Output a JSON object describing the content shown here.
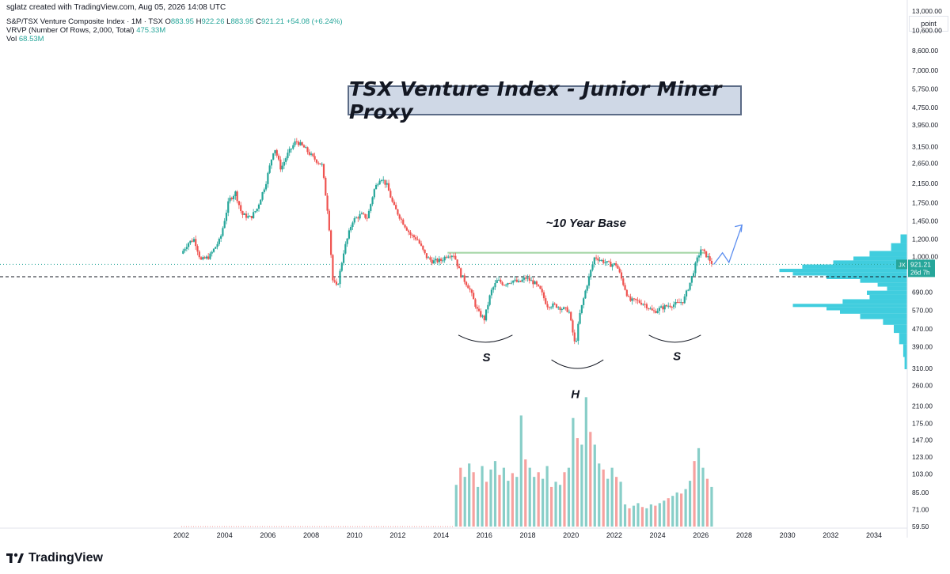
{
  "header": {
    "credit": "sglatz created with TradingView.com, Aug 05, 2026 14:08 UTC"
  },
  "legend": {
    "symbol": "S&P/TSX Venture Composite Index · 1M · TSX",
    "open_label": "O",
    "open": "883.95",
    "high_label": "H",
    "high": "922.26",
    "low_label": "L",
    "low": "883.95",
    "close_label": "C",
    "close": "921.21",
    "change": "+54.08 (+6.24%)",
    "vrvp_label": "VRVP (Number Of Rows, 2,000, Total)",
    "vrvp_value": "475.33M",
    "vol_label": "Vol",
    "vol_value": "68.53M"
  },
  "title": "TSX Venture Index - Junior Miner Proxy",
  "annotations": {
    "base": "~10 Year Base",
    "left_shoulder": "S",
    "head": "H",
    "right_shoulder": "S"
  },
  "price_scale": {
    "mode_button": "point",
    "ticks": [
      "13,000.00",
      "10,600.00",
      "8,600.00",
      "7,000.00",
      "5,750.00",
      "4,750.00",
      "3,950.00",
      "3,150.00",
      "2,650.00",
      "2,150.00",
      "1,750.00",
      "1,450.00",
      "1,200.00",
      "1,000.00",
      "830.00",
      "690.00",
      "570.00",
      "470.00",
      "390.00",
      "310.00",
      "260.00",
      "210.00",
      "175.00",
      "147.00",
      "123.00",
      "103.00",
      "85.00",
      "71.00",
      "59.50"
    ],
    "last_price_symbol": "JX",
    "last_price": "921.21",
    "countdown": "26d 7h"
  },
  "time_scale": {
    "ticks": [
      "2002",
      "2004",
      "2006",
      "2008",
      "2010",
      "2012",
      "2014",
      "2016",
      "2018",
      "2020",
      "2022",
      "2024",
      "2026",
      "2028",
      "2030",
      "2032",
      "2034"
    ]
  },
  "brand": {
    "name": "TradingView"
  },
  "colors": {
    "up": "#26a69a",
    "down": "#ef5350",
    "vrvp": "#1fc4d8",
    "base_line": "#a5d6a7",
    "projection": "#5b8def",
    "title_bg": "#cfd8e6"
  },
  "chart_data": {
    "type": "candlestick",
    "timeframe": "1M",
    "scale": "log",
    "ylim": [
      55,
      16000
    ],
    "xlim": [
      2001.0,
      2035.0
    ],
    "price_points": [
      [
        2002.0,
        1030
      ],
      [
        2002.3,
        1150
      ],
      [
        2002.6,
        1200
      ],
      [
        2002.9,
        960
      ],
      [
        2003.3,
        1000
      ],
      [
        2003.8,
        1200
      ],
      [
        2004.2,
        1800
      ],
      [
        2004.5,
        1950
      ],
      [
        2004.8,
        1550
      ],
      [
        2005.2,
        1500
      ],
      [
        2005.5,
        1650
      ],
      [
        2005.9,
        2150
      ],
      [
        2006.3,
        3150
      ],
      [
        2006.6,
        2500
      ],
      [
        2006.9,
        2900
      ],
      [
        2007.3,
        3350
      ],
      [
        2007.7,
        3100
      ],
      [
        2008.1,
        2800
      ],
      [
        2008.5,
        2600
      ],
      [
        2008.8,
        1500
      ],
      [
        2009.0,
        780
      ],
      [
        2009.2,
        720
      ],
      [
        2009.5,
        1050
      ],
      [
        2009.9,
        1450
      ],
      [
        2010.3,
        1550
      ],
      [
        2010.6,
        1500
      ],
      [
        2010.9,
        2000
      ],
      [
        2011.2,
        2300
      ],
      [
        2011.5,
        2100
      ],
      [
        2011.8,
        1700
      ],
      [
        2012.2,
        1450
      ],
      [
        2012.6,
        1250
      ],
      [
        2012.9,
        1200
      ],
      [
        2013.3,
        1000
      ],
      [
        2013.6,
        950
      ],
      [
        2014.0,
        960
      ],
      [
        2014.3,
        1020
      ],
      [
        2014.6,
        1020
      ],
      [
        2014.9,
        830
      ],
      [
        2015.3,
        720
      ],
      [
        2015.7,
        560
      ],
      [
        2016.0,
        520
      ],
      [
        2016.3,
        690
      ],
      [
        2016.6,
        780
      ],
      [
        2016.9,
        750
      ],
      [
        2017.3,
        780
      ],
      [
        2017.6,
        760
      ],
      [
        2017.9,
        800
      ],
      [
        2018.3,
        760
      ],
      [
        2018.6,
        700
      ],
      [
        2018.9,
        600
      ],
      [
        2019.3,
        600
      ],
      [
        2019.6,
        580
      ],
      [
        2019.9,
        570
      ],
      [
        2020.2,
        390
      ],
      [
        2020.4,
        540
      ],
      [
        2020.7,
        720
      ],
      [
        2020.9,
        850
      ],
      [
        2021.1,
        1000
      ],
      [
        2021.4,
        960
      ],
      [
        2021.8,
        920
      ],
      [
        2022.1,
        920
      ],
      [
        2022.4,
        760
      ],
      [
        2022.7,
        630
      ],
      [
        2023.0,
        630
      ],
      [
        2023.4,
        610
      ],
      [
        2023.8,
        560
      ],
      [
        2024.1,
        580
      ],
      [
        2024.5,
        600
      ],
      [
        2024.9,
        610
      ],
      [
        2025.2,
        630
      ],
      [
        2025.5,
        760
      ],
      [
        2025.8,
        950
      ],
      [
        2026.0,
        1080
      ],
      [
        2026.3,
        1000
      ],
      [
        2026.55,
        921.21
      ]
    ],
    "volume_bars": [
      [
        2014.7,
        92
      ],
      [
        2014.9,
        110
      ],
      [
        2015.1,
        100
      ],
      [
        2015.3,
        115
      ],
      [
        2015.5,
        105
      ],
      [
        2015.7,
        90
      ],
      [
        2015.9,
        112
      ],
      [
        2016.1,
        95
      ],
      [
        2016.3,
        108
      ],
      [
        2016.5,
        118
      ],
      [
        2016.7,
        102
      ],
      [
        2016.9,
        110
      ],
      [
        2017.1,
        96
      ],
      [
        2017.3,
        104
      ],
      [
        2017.5,
        100
      ],
      [
        2017.7,
        190
      ],
      [
        2017.9,
        120
      ],
      [
        2018.1,
        110
      ],
      [
        2018.3,
        100
      ],
      [
        2018.5,
        105
      ],
      [
        2018.7,
        98
      ],
      [
        2018.9,
        112
      ],
      [
        2019.1,
        90
      ],
      [
        2019.3,
        95
      ],
      [
        2019.5,
        92
      ],
      [
        2019.7,
        105
      ],
      [
        2019.9,
        110
      ],
      [
        2020.1,
        185
      ],
      [
        2020.3,
        150
      ],
      [
        2020.5,
        140
      ],
      [
        2020.7,
        230
      ],
      [
        2020.9,
        160
      ],
      [
        2021.1,
        140
      ],
      [
        2021.3,
        115
      ],
      [
        2021.5,
        108
      ],
      [
        2021.7,
        98
      ],
      [
        2021.9,
        110
      ],
      [
        2022.1,
        100
      ],
      [
        2022.3,
        95
      ],
      [
        2022.5,
        75
      ],
      [
        2022.7,
        72
      ],
      [
        2022.9,
        74
      ],
      [
        2023.1,
        76
      ],
      [
        2023.3,
        73
      ],
      [
        2023.5,
        72
      ],
      [
        2023.7,
        75
      ],
      [
        2023.9,
        74
      ],
      [
        2024.1,
        76
      ],
      [
        2024.3,
        78
      ],
      [
        2024.5,
        80
      ],
      [
        2024.7,
        82
      ],
      [
        2024.9,
        85
      ],
      [
        2025.1,
        84
      ],
      [
        2025.3,
        88
      ],
      [
        2025.5,
        96
      ],
      [
        2025.7,
        118
      ],
      [
        2025.9,
        135
      ],
      [
        2026.1,
        110
      ],
      [
        2026.3,
        98
      ],
      [
        2026.5,
        90
      ]
    ],
    "base_line": {
      "price": 1040,
      "x_from": 2014.3,
      "x_to": 2026.2
    },
    "dashed_reference_price": 810,
    "projection": [
      [
        2026.6,
        921
      ],
      [
        2027.0,
        1040
      ],
      [
        2027.3,
        940
      ],
      [
        2027.9,
        1390
      ]
    ],
    "vrvp_profile": [
      [
        1260,
        0.05
      ],
      [
        1150,
        0.12
      ],
      [
        1060,
        0.28
      ],
      [
        1000,
        0.4
      ],
      [
        960,
        0.55
      ],
      [
        920,
        0.78
      ],
      [
        880,
        0.95
      ],
      [
        850,
        0.85
      ],
      [
        820,
        0.6
      ],
      [
        790,
        0.35
      ],
      [
        760,
        0.22
      ],
      [
        730,
        0.15
      ],
      [
        700,
        0.3
      ],
      [
        670,
        0.28
      ],
      [
        640,
        0.48
      ],
      [
        610,
        0.85
      ],
      [
        590,
        0.6
      ],
      [
        570,
        0.5
      ],
      [
        550,
        0.35
      ],
      [
        520,
        0.18
      ],
      [
        490,
        0.1
      ],
      [
        450,
        0.06
      ],
      [
        400,
        0.03
      ],
      [
        350,
        0.02
      ]
    ]
  }
}
